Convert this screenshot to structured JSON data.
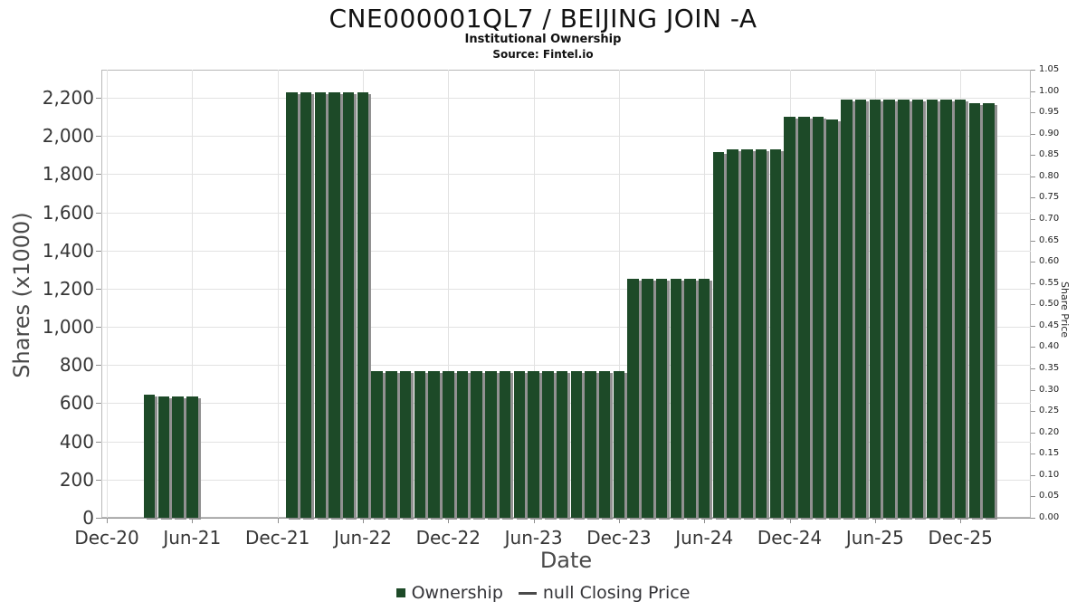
{
  "header": {
    "title": "CNE000001QL7 / BEIJING JOIN -A",
    "subtitle": "Institutional Ownership",
    "source": "Source: Fintel.io"
  },
  "chart_data": {
    "type": "bar",
    "title": "CNE000001QL7 / BEIJING JOIN -A",
    "subtitle": "Institutional Ownership",
    "source": "Source: Fintel.io",
    "xlabel": "Date",
    "ylabel_left": "Shares (x1000)",
    "ylabel_right": "Share Price",
    "grid": true,
    "bar_color": "#1d4a28",
    "bar_shadow_color": "#919191",
    "x_ticks": [
      {
        "label": "Dec-20",
        "i": 0
      },
      {
        "label": "Jun-21",
        "i": 6
      },
      {
        "label": "Dec-21",
        "i": 12
      },
      {
        "label": "Jun-22",
        "i": 18
      },
      {
        "label": "Dec-22",
        "i": 24
      },
      {
        "label": "Jun-23",
        "i": 30
      },
      {
        "label": "Dec-23",
        "i": 36
      },
      {
        "label": "Jun-24",
        "i": 42
      },
      {
        "label": "Dec-24",
        "i": 48
      },
      {
        "label": "Jun-25",
        "i": 54
      },
      {
        "label": "Dec-25",
        "i": 60
      }
    ],
    "left_axis": {
      "ticks": [
        0,
        200,
        400,
        600,
        800,
        1000,
        1200,
        1400,
        1600,
        1800,
        2000,
        2200
      ],
      "tick_labels": [
        "0",
        "200",
        "400",
        "600",
        "800",
        "1,000",
        "1,200",
        "1,400",
        "1,600",
        "1,800",
        "2,000",
        "2,200"
      ],
      "ylim": [
        0,
        2350
      ]
    },
    "right_axis": {
      "ylim": [
        0,
        1.05
      ],
      "tick_labels": [
        "0.00",
        "0.05",
        "0.10",
        "0.15",
        "0.20",
        "0.25",
        "0.30",
        "0.35",
        "0.40",
        "0.45",
        "0.50",
        "0.55",
        "0.60",
        "0.65",
        "0.70",
        "0.75",
        "0.80",
        "0.85",
        "0.90",
        "0.95",
        "1.00",
        "1.05"
      ]
    },
    "series": [
      {
        "name": "Ownership",
        "type": "bar",
        "color": "#1d4a28",
        "points": [
          {
            "month": "Mar-21",
            "i": 3,
            "value": 645
          },
          {
            "month": "Apr-21",
            "i": 4,
            "value": 633
          },
          {
            "month": "May-21",
            "i": 5,
            "value": 633
          },
          {
            "month": "Jun-21",
            "i": 6,
            "value": 633
          },
          {
            "month": "Jan-22",
            "i": 13,
            "value": 2230
          },
          {
            "month": "Feb-22",
            "i": 14,
            "value": 2230
          },
          {
            "month": "Mar-22",
            "i": 15,
            "value": 2230
          },
          {
            "month": "Apr-22",
            "i": 16,
            "value": 2230
          },
          {
            "month": "May-22",
            "i": 17,
            "value": 2230
          },
          {
            "month": "Jun-22",
            "i": 18,
            "value": 2230
          },
          {
            "month": "Jul-22",
            "i": 19,
            "value": 770
          },
          {
            "month": "Aug-22",
            "i": 20,
            "value": 770
          },
          {
            "month": "Sep-22",
            "i": 21,
            "value": 770
          },
          {
            "month": "Oct-22",
            "i": 22,
            "value": 770
          },
          {
            "month": "Nov-22",
            "i": 23,
            "value": 770
          },
          {
            "month": "Dec-22",
            "i": 24,
            "value": 770
          },
          {
            "month": "Jan-23",
            "i": 25,
            "value": 770
          },
          {
            "month": "Feb-23",
            "i": 26,
            "value": 770
          },
          {
            "month": "Mar-23",
            "i": 27,
            "value": 770
          },
          {
            "month": "Apr-23",
            "i": 28,
            "value": 770
          },
          {
            "month": "May-23",
            "i": 29,
            "value": 770
          },
          {
            "month": "Jun-23",
            "i": 30,
            "value": 770
          },
          {
            "month": "Jul-23",
            "i": 31,
            "value": 770
          },
          {
            "month": "Aug-23",
            "i": 32,
            "value": 770
          },
          {
            "month": "Sep-23",
            "i": 33,
            "value": 770
          },
          {
            "month": "Oct-23",
            "i": 34,
            "value": 770
          },
          {
            "month": "Nov-23",
            "i": 35,
            "value": 770
          },
          {
            "month": "Dec-23",
            "i": 36,
            "value": 770
          },
          {
            "month": "Jan-24",
            "i": 37,
            "value": 1250
          },
          {
            "month": "Feb-24",
            "i": 38,
            "value": 1250
          },
          {
            "month": "Mar-24",
            "i": 39,
            "value": 1250
          },
          {
            "month": "Apr-24",
            "i": 40,
            "value": 1250
          },
          {
            "month": "May-24",
            "i": 41,
            "value": 1250
          },
          {
            "month": "Jun-24",
            "i": 42,
            "value": 1250
          },
          {
            "month": "Jul-24",
            "i": 43,
            "value": 1915
          },
          {
            "month": "Aug-24",
            "i": 44,
            "value": 1930
          },
          {
            "month": "Sep-24",
            "i": 45,
            "value": 1930
          },
          {
            "month": "Oct-24",
            "i": 46,
            "value": 1930
          },
          {
            "month": "Nov-24",
            "i": 47,
            "value": 1930
          },
          {
            "month": "Dec-24",
            "i": 48,
            "value": 2100
          },
          {
            "month": "Jan-25",
            "i": 49,
            "value": 2100
          },
          {
            "month": "Feb-25",
            "i": 50,
            "value": 2100
          },
          {
            "month": "Mar-25",
            "i": 51,
            "value": 2085
          },
          {
            "month": "Apr-25",
            "i": 52,
            "value": 2190
          },
          {
            "month": "May-25",
            "i": 53,
            "value": 2190
          },
          {
            "month": "Jun-25",
            "i": 54,
            "value": 2190
          },
          {
            "month": "Jul-25",
            "i": 55,
            "value": 2190
          },
          {
            "month": "Aug-25",
            "i": 56,
            "value": 2190
          },
          {
            "month": "Sep-25",
            "i": 57,
            "value": 2190
          },
          {
            "month": "Oct-25",
            "i": 58,
            "value": 2190
          },
          {
            "month": "Nov-25",
            "i": 59,
            "value": 2190
          },
          {
            "month": "Dec-25",
            "i": 60,
            "value": 2190
          },
          {
            "month": "Jan-26",
            "i": 61,
            "value": 2170
          },
          {
            "month": "Feb-26",
            "i": 62,
            "value": 2170
          }
        ]
      },
      {
        "name": "null Closing Price",
        "type": "line",
        "color": "#4a4a4a",
        "points": []
      }
    ],
    "legend": {
      "position": "bottom",
      "items": [
        {
          "label": "Ownership",
          "marker": "square",
          "color": "#1d4a28"
        },
        {
          "label": "null Closing Price",
          "marker": "line",
          "color": "#4a4a4a"
        }
      ]
    }
  }
}
